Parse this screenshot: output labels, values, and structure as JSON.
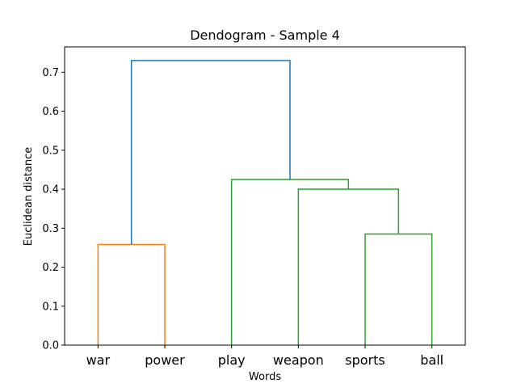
{
  "chart_data": {
    "type": "dendrogram",
    "title": "Dendogram - Sample 4",
    "xlabel": "Words",
    "ylabel": "Euclidean distance",
    "leaves": [
      "war",
      "power",
      "play",
      "weapon",
      "sports",
      "ball"
    ],
    "ylim": [
      0,
      0.765
    ],
    "yticks": [
      "0.0",
      "0.1",
      "0.2",
      "0.3",
      "0.4",
      "0.5",
      "0.6",
      "0.7"
    ],
    "grid": false,
    "links": [
      {
        "left": "war",
        "right": "power",
        "height": 0.258,
        "color": "#ff7f0e"
      },
      {
        "left": "sports",
        "right": "ball",
        "height": 0.285,
        "color": "#2ca02c"
      },
      {
        "left": "weapon",
        "right": "sports+ball",
        "height": 0.4,
        "color": "#2ca02c"
      },
      {
        "left": "play",
        "right": "weapon+sports+ball",
        "height": 0.425,
        "color": "#2ca02c"
      },
      {
        "left": "war+power",
        "right": "play+weapon+sports+ball",
        "height": 0.73,
        "color": "#1f77b4"
      }
    ]
  }
}
